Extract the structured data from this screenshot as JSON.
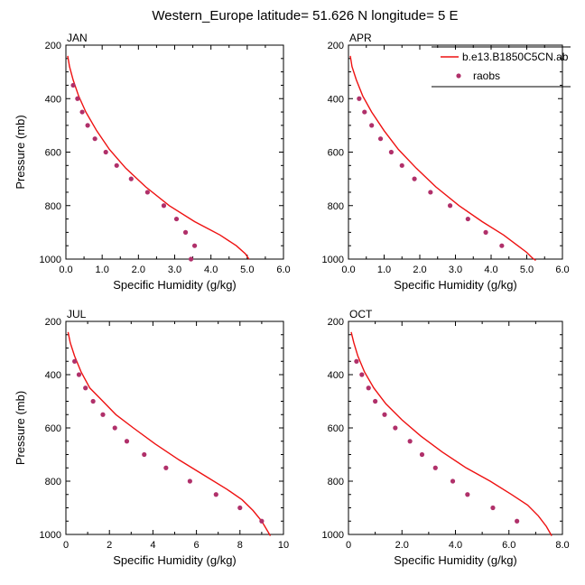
{
  "title": "Western_Europe  latitude= 51.626 N longitude= 5 E",
  "legend": {
    "model_label": "b.e13.B1850C5CN.ab",
    "obs_label": "raobs"
  },
  "colors": {
    "model": "#ee1111",
    "obs": "#b0306a"
  },
  "chart_data": [
    {
      "type": "line",
      "panel": "JAN",
      "xlabel": "Specific Humidity (g/kg)",
      "ylabel": "Pressure (mb)",
      "xlim": [
        0,
        6
      ],
      "ylim": [
        1000,
        200
      ],
      "x_ticks": [
        0,
        1,
        2,
        3,
        4,
        5,
        6
      ],
      "x_tick_labels": [
        "0.0",
        "1.0",
        "2.0",
        "3.0",
        "4.0",
        "5.0",
        "6.0"
      ],
      "y_ticks": [
        200,
        400,
        600,
        800,
        1000
      ],
      "y_tick_labels": [
        "200",
        "400",
        "600",
        "800",
        "1000"
      ],
      "series": [
        {
          "name": "b.e13.B1850C5CN.ab",
          "style": "line",
          "x": [
            0.05,
            0.1,
            0.2,
            0.35,
            0.55,
            0.85,
            1.2,
            1.65,
            2.2,
            2.85,
            3.55,
            4.25,
            4.7,
            4.95,
            5.05
          ],
          "y": [
            240,
            280,
            330,
            390,
            450,
            520,
            590,
            660,
            730,
            800,
            860,
            910,
            950,
            980,
            1000
          ]
        },
        {
          "name": "raobs",
          "style": "points",
          "x": [
            0.2,
            0.32,
            0.45,
            0.6,
            0.8,
            1.1,
            1.4,
            1.8,
            2.25,
            2.7,
            3.05,
            3.3,
            3.55,
            3.45
          ],
          "y": [
            350,
            400,
            450,
            500,
            550,
            600,
            650,
            700,
            750,
            800,
            850,
            900,
            950,
            1000
          ]
        }
      ]
    },
    {
      "type": "line",
      "panel": "APR",
      "xlabel": "Specific Humidity (g/kg)",
      "ylabel": "",
      "xlim": [
        0,
        6
      ],
      "ylim": [
        1000,
        200
      ],
      "x_ticks": [
        0,
        1,
        2,
        3,
        4,
        5,
        6
      ],
      "x_tick_labels": [
        "0.0",
        "1.0",
        "2.0",
        "3.0",
        "4.0",
        "5.0",
        "6.0"
      ],
      "y_ticks": [
        200,
        400,
        600,
        800,
        1000
      ],
      "y_tick_labels": [
        "200",
        "400",
        "600",
        "800",
        "1000"
      ],
      "series": [
        {
          "name": "b.e13.B1850C5CN.ab",
          "style": "line",
          "x": [
            0.05,
            0.1,
            0.22,
            0.4,
            0.65,
            1.0,
            1.4,
            1.9,
            2.45,
            3.1,
            3.75,
            4.35,
            4.75,
            5.0,
            5.15,
            5.25
          ],
          "y": [
            240,
            280,
            330,
            390,
            450,
            520,
            590,
            660,
            730,
            800,
            860,
            910,
            950,
            975,
            995,
            1005
          ]
        },
        {
          "name": "raobs",
          "style": "points",
          "x": [
            0.3,
            0.45,
            0.65,
            0.9,
            1.2,
            1.5,
            1.85,
            2.3,
            2.85,
            3.35,
            3.85,
            4.3
          ],
          "y": [
            400,
            450,
            500,
            550,
            600,
            650,
            700,
            750,
            800,
            850,
            900,
            950
          ]
        }
      ]
    },
    {
      "type": "line",
      "panel": "JUL",
      "xlabel": "Specific Humidity (g/kg)",
      "ylabel": "Pressure (mb)",
      "xlim": [
        0,
        10
      ],
      "ylim": [
        1000,
        200
      ],
      "x_ticks": [
        0,
        2,
        4,
        6,
        8,
        10
      ],
      "x_tick_labels": [
        "0",
        "2",
        "4",
        "6",
        "8",
        "10"
      ],
      "y_ticks": [
        200,
        400,
        600,
        800,
        1000
      ],
      "y_tick_labels": [
        "200",
        "400",
        "600",
        "800",
        "1000"
      ],
      "series": [
        {
          "name": "b.e13.B1850C5CN.ab",
          "style": "line",
          "x": [
            0.1,
            0.2,
            0.4,
            0.7,
            1.1,
            1.7,
            2.3,
            3.1,
            4.1,
            5.2,
            6.4,
            7.4,
            8.1,
            8.6,
            9.0,
            9.4
          ],
          "y": [
            240,
            280,
            330,
            390,
            450,
            500,
            550,
            600,
            660,
            720,
            780,
            830,
            870,
            910,
            950,
            1005
          ]
        },
        {
          "name": "raobs",
          "style": "points",
          "x": [
            0.4,
            0.6,
            0.9,
            1.25,
            1.7,
            2.25,
            2.8,
            3.6,
            4.6,
            5.7,
            6.9,
            8.0,
            9.0
          ],
          "y": [
            350,
            400,
            450,
            500,
            550,
            600,
            650,
            700,
            750,
            800,
            850,
            900,
            950
          ]
        }
      ]
    },
    {
      "type": "line",
      "panel": "OCT",
      "xlabel": "Specific Humidity (g/kg)",
      "ylabel": "",
      "xlim": [
        0,
        8
      ],
      "ylim": [
        1000,
        200
      ],
      "x_ticks": [
        0,
        2,
        4,
        6,
        8
      ],
      "x_tick_labels": [
        "0",
        "2.0",
        "4.0",
        "6.0",
        "8.0"
      ],
      "y_ticks": [
        200,
        400,
        600,
        800,
        1000
      ],
      "y_tick_labels": [
        "200",
        "400",
        "600",
        "800",
        "1000"
      ],
      "series": [
        {
          "name": "b.e13.B1850C5CN.ab",
          "style": "line",
          "x": [
            0.1,
            0.2,
            0.35,
            0.6,
            0.95,
            1.4,
            2.0,
            2.7,
            3.5,
            4.4,
            5.3,
            6.1,
            6.7,
            7.1,
            7.4,
            7.6
          ],
          "y": [
            240,
            280,
            330,
            390,
            450,
            510,
            570,
            630,
            690,
            750,
            800,
            850,
            890,
            930,
            970,
            1005
          ]
        },
        {
          "name": "raobs",
          "style": "points",
          "x": [
            0.3,
            0.5,
            0.75,
            1.0,
            1.35,
            1.75,
            2.3,
            2.75,
            3.25,
            3.9,
            4.45,
            5.4,
            6.3
          ],
          "y": [
            350,
            400,
            450,
            500,
            550,
            600,
            650,
            700,
            750,
            800,
            850,
            900,
            950
          ]
        }
      ]
    }
  ]
}
